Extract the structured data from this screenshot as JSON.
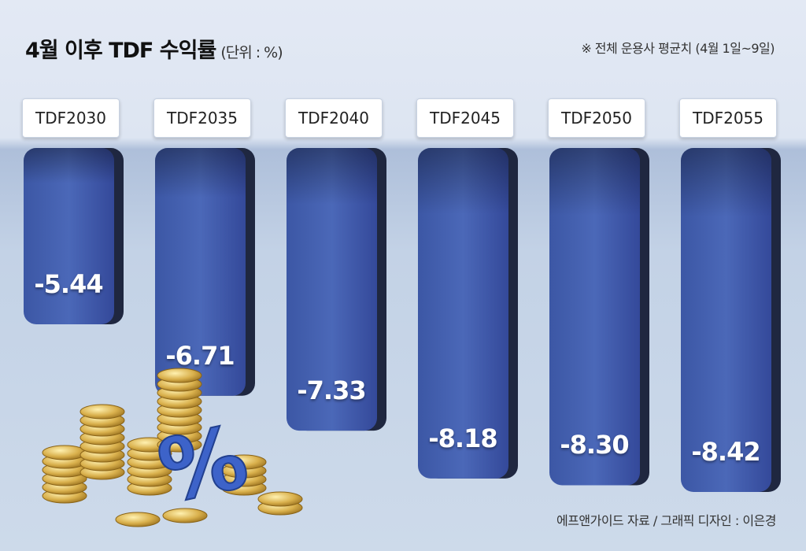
{
  "chart_data": {
    "type": "bar",
    "title": "4월 이후 TDF 수익률",
    "unit": "(단위 : %)",
    "note": "※ 전체 운용사 평균치 (4월 1일~9일)",
    "source": "에프앤가이드 자료 / 그래픽 디자인 : 이은경",
    "categories": [
      "TDF2030",
      "TDF2035",
      "TDF2040",
      "TDF2045",
      "TDF2050",
      "TDF2055"
    ],
    "values": [
      -5.44,
      -6.71,
      -7.33,
      -8.18,
      -8.3,
      -8.42
    ],
    "value_labels": [
      "-5.44",
      "-6.71",
      "-7.33",
      "-8.18",
      "-8.30",
      "-8.42"
    ],
    "bar_color": "#3d59a8",
    "grid": false,
    "legend": "none"
  }
}
